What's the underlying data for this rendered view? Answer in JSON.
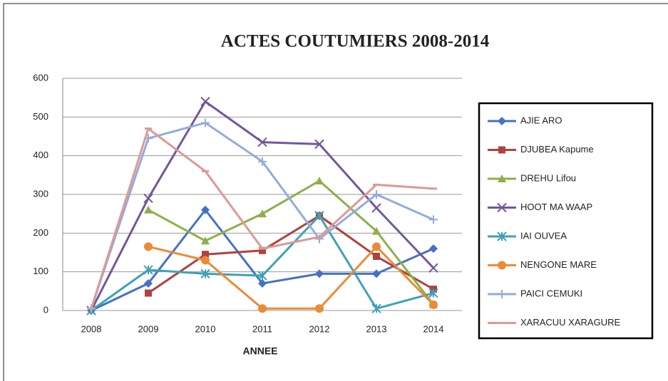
{
  "chart_data": {
    "type": "line",
    "title": "ACTES COUTUMIERS 2008-2014",
    "x_label": "ANNEE",
    "categories": [
      "2008",
      "2009",
      "2010",
      "2011",
      "2012",
      "2013",
      "2014"
    ],
    "ylim": [
      0,
      600
    ],
    "yticks": [
      0,
      100,
      200,
      300,
      400,
      500,
      600
    ],
    "grid": true,
    "legend": "right",
    "series": [
      {
        "name": "AJIE ARO",
        "color": "#4472c4",
        "marker": "diamond",
        "values": [
          0,
          70,
          260,
          70,
          95,
          95,
          160
        ]
      },
      {
        "name": "DJUBEA Kapume",
        "color": "#b0413e",
        "marker": "square",
        "values": [
          null,
          45,
          145,
          155,
          245,
          140,
          55
        ]
      },
      {
        "name": "DREHU Lifou",
        "color": "#8cb04a",
        "marker": "triangle",
        "values": [
          null,
          260,
          180,
          250,
          335,
          205,
          15
        ]
      },
      {
        "name": "HOOT MA WAAP",
        "color": "#71589b",
        "marker": "x",
        "values": [
          0,
          290,
          540,
          435,
          430,
          265,
          110
        ]
      },
      {
        "name": "IAI OUVEA",
        "color": "#3ea2b5",
        "marker": "star",
        "values": [
          0,
          105,
          95,
          90,
          245,
          5,
          45
        ]
      },
      {
        "name": "NENGONE MARE",
        "color": "#ec8b35",
        "marker": "circle",
        "values": [
          null,
          165,
          130,
          5,
          5,
          165,
          15
        ]
      },
      {
        "name": "PAICI CEMUKI",
        "color": "#93acd9",
        "marker": "plus",
        "values": [
          5,
          445,
          485,
          385,
          185,
          300,
          235
        ]
      },
      {
        "name": "XARACUU XARAGURE",
        "color": "#dc9a96",
        "marker": "dash",
        "values": [
          5,
          470,
          360,
          160,
          190,
          325,
          315
        ]
      }
    ]
  }
}
